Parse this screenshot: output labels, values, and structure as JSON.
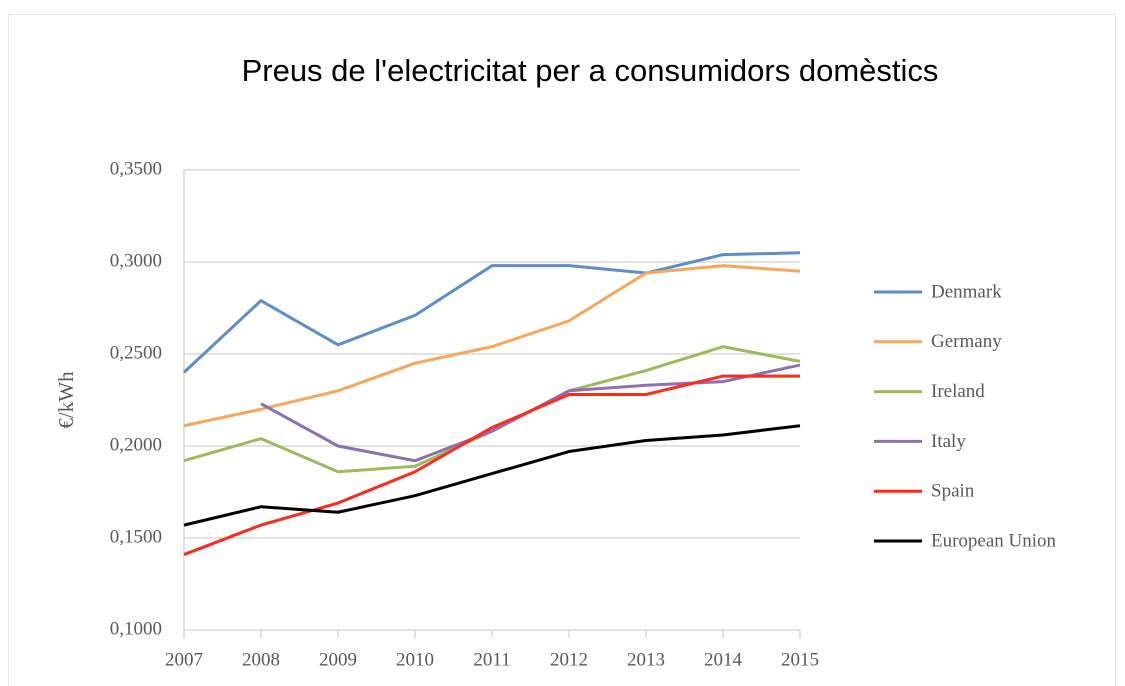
{
  "chart_data": {
    "type": "line",
    "title": "Preus de l'electricitat per a consumidors domèstics",
    "y_label": "€/kWh",
    "categories": [
      "2007",
      "2008",
      "2009",
      "2010",
      "2011",
      "2012",
      "2013",
      "2014",
      "2015"
    ],
    "ylim": [
      0.1,
      0.35
    ],
    "yticks": [
      {
        "value": 0.1,
        "label": "0,1000"
      },
      {
        "value": 0.15,
        "label": "0,1500"
      },
      {
        "value": 0.2,
        "label": "0,2000"
      },
      {
        "value": 0.25,
        "label": "0,2500"
      },
      {
        "value": 0.3,
        "label": "0,3000"
      },
      {
        "value": 0.35,
        "label": "0,3500"
      }
    ],
    "grid": true,
    "legend": "right",
    "series": [
      {
        "name": "Denmark",
        "color": "#5b8fc9",
        "values": [
          0.24,
          0.279,
          0.255,
          0.271,
          0.298,
          0.298,
          0.294,
          0.304,
          0.305
        ]
      },
      {
        "name": "Germany",
        "color": "#f9a65a",
        "values": [
          0.211,
          0.22,
          0.23,
          0.245,
          0.254,
          0.268,
          0.294,
          0.298,
          0.295
        ]
      },
      {
        "name": "Ireland",
        "color": "#9bbb59",
        "values": [
          0.192,
          0.204,
          0.186,
          0.189,
          0.208,
          0.23,
          0.241,
          0.254,
          0.246
        ]
      },
      {
        "name": "Italy",
        "color": "#8e6fb5",
        "values": [
          null,
          0.223,
          0.2,
          0.192,
          0.208,
          0.23,
          0.233,
          0.235,
          0.244
        ]
      },
      {
        "name": "Spain",
        "color": "#ff2a1a",
        "values": [
          0.141,
          0.157,
          0.169,
          0.186,
          0.21,
          0.228,
          0.228,
          0.238,
          0.238
        ]
      },
      {
        "name": "European Union",
        "color": "#000000",
        "values": [
          0.157,
          0.167,
          0.164,
          0.173,
          0.185,
          0.197,
          0.203,
          0.206,
          0.211
        ]
      }
    ]
  }
}
